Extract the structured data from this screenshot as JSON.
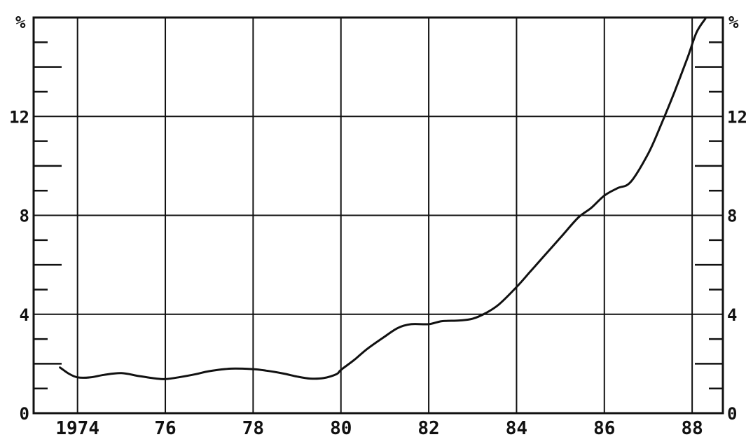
{
  "chart_data": {
    "type": "line",
    "title": "",
    "xlabel": "",
    "ylabel": "%",
    "ylabel_right": "%",
    "xlim": [
      1973.0,
      1988.7
    ],
    "ylim": [
      0,
      16
    ],
    "grid": true,
    "x_ticks": [
      {
        "value": 1974,
        "label": "1974"
      },
      {
        "value": 1976,
        "label": "76"
      },
      {
        "value": 1978,
        "label": "78"
      },
      {
        "value": 1980,
        "label": "80"
      },
      {
        "value": 1982,
        "label": "82"
      },
      {
        "value": 1984,
        "label": "84"
      },
      {
        "value": 1986,
        "label": "86"
      },
      {
        "value": 1988,
        "label": "88"
      }
    ],
    "y_ticks": [
      {
        "value": 0,
        "label": "0"
      },
      {
        "value": 4,
        "label": "4"
      },
      {
        "value": 8,
        "label": "8"
      },
      {
        "value": 12,
        "label": "12"
      }
    ],
    "series": [
      {
        "x": [
          1973.6,
          1973.8,
          1974.0,
          1974.3,
          1974.6,
          1975.0,
          1975.4,
          1975.8,
          1976.0,
          1976.3,
          1976.7,
          1977.0,
          1977.5,
          1978.0,
          1978.3,
          1978.7,
          1979.0,
          1979.3,
          1979.6,
          1979.9,
          1980.0,
          1980.3,
          1980.6,
          1981.0,
          1981.3,
          1981.6,
          1982.0,
          1982.3,
          1982.7,
          1983.0,
          1983.3,
          1983.6,
          1984.0,
          1984.3,
          1984.6,
          1985.0,
          1985.4,
          1985.7,
          1986.0,
          1986.3,
          1986.6,
          1987.0,
          1987.3,
          1987.6,
          1987.9,
          1988.1,
          1988.3
        ],
        "values": [
          1.85,
          1.6,
          1.45,
          1.45,
          1.55,
          1.62,
          1.5,
          1.4,
          1.38,
          1.45,
          1.58,
          1.7,
          1.8,
          1.78,
          1.72,
          1.6,
          1.48,
          1.4,
          1.42,
          1.58,
          1.75,
          2.15,
          2.6,
          3.1,
          3.45,
          3.6,
          3.6,
          3.72,
          3.75,
          3.82,
          4.05,
          4.4,
          5.1,
          5.7,
          6.3,
          7.1,
          7.9,
          8.3,
          8.8,
          9.1,
          9.35,
          10.5,
          11.7,
          13.0,
          14.4,
          15.4,
          15.95
        ]
      }
    ]
  }
}
